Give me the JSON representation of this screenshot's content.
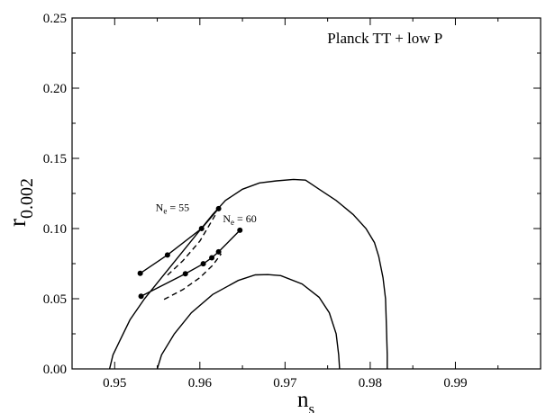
{
  "chart_data": {
    "type": "line",
    "title": "",
    "xlabel": {
      "main": "n",
      "sub": "s"
    },
    "ylabel": {
      "main": "r",
      "sub": "0.002"
    },
    "xlim": [
      0.945,
      1.0
    ],
    "ylim": [
      0.0,
      0.25
    ],
    "xticks": [
      0.95,
      0.96,
      0.97,
      0.98,
      0.99
    ],
    "xtick_labels": [
      "0.95",
      "0.96",
      "0.97",
      "0.98",
      "0.99"
    ],
    "yticks": [
      0.0,
      0.05,
      0.1,
      0.15,
      0.2,
      0.25
    ],
    "ytick_labels": [
      "0.00",
      "0.05",
      "0.10",
      "0.15",
      "0.20",
      "0.25"
    ],
    "grid": false,
    "annotations": [
      {
        "text": "Planck TT + low P",
        "x": 0.9885,
        "y": 0.232
      }
    ],
    "efold_labels": [
      {
        "main": "N",
        "sub": "e",
        "rest": " = 55",
        "x": 0.9548,
        "y": 0.1125
      },
      {
        "main": "N",
        "sub": "e",
        "rest": " = 60",
        "x": 0.9627,
        "y": 0.1045
      }
    ],
    "series": [
      {
        "style": "solid",
        "points": [
          [
            0.9494,
            0.0
          ],
          [
            0.9498,
            0.01
          ],
          [
            0.9506,
            0.02
          ],
          [
            0.9518,
            0.035
          ],
          [
            0.9535,
            0.05
          ],
          [
            0.9555,
            0.065
          ],
          [
            0.9575,
            0.08
          ],
          [
            0.9595,
            0.095
          ],
          [
            0.9615,
            0.11
          ],
          [
            0.963,
            0.12
          ],
          [
            0.965,
            0.128
          ],
          [
            0.967,
            0.1325
          ],
          [
            0.969,
            0.134
          ],
          [
            0.971,
            0.135
          ],
          [
            0.9724,
            0.1345
          ],
          [
            0.974,
            0.128
          ],
          [
            0.976,
            0.12
          ],
          [
            0.978,
            0.11
          ],
          [
            0.9795,
            0.1
          ],
          [
            0.9805,
            0.09
          ],
          [
            0.981,
            0.08
          ],
          [
            0.9815,
            0.065
          ],
          [
            0.9818,
            0.05
          ],
          [
            0.9819,
            0.03
          ],
          [
            0.982,
            0.01
          ],
          [
            0.982,
            0.0
          ]
        ]
      },
      {
        "style": "solid",
        "points": [
          [
            0.955,
            0.0
          ],
          [
            0.9555,
            0.01
          ],
          [
            0.957,
            0.025
          ],
          [
            0.959,
            0.04
          ],
          [
            0.9615,
            0.053
          ],
          [
            0.9645,
            0.063
          ],
          [
            0.9665,
            0.067
          ],
          [
            0.968,
            0.0672
          ],
          [
            0.9695,
            0.0665
          ],
          [
            0.972,
            0.0605
          ],
          [
            0.974,
            0.051
          ],
          [
            0.9752,
            0.04
          ],
          [
            0.976,
            0.025
          ],
          [
            0.9763,
            0.01
          ],
          [
            0.9764,
            0.0
          ]
        ]
      },
      {
        "style": "solid",
        "markers": true,
        "points": [
          [
            0.953,
            0.0681
          ],
          [
            0.9562,
            0.0812
          ],
          [
            0.9602,
            0.1
          ],
          [
            0.9622,
            0.1142
          ]
        ]
      },
      {
        "style": "solid",
        "markers": true,
        "points": [
          [
            0.9531,
            0.0518
          ],
          [
            0.9583,
            0.0678
          ],
          [
            0.9604,
            0.0749
          ],
          [
            0.9614,
            0.0792
          ],
          [
            0.9622,
            0.0834
          ],
          [
            0.9647,
            0.0988
          ]
        ]
      },
      {
        "style": "dashed",
        "points": [
          [
            0.9562,
            0.0668
          ],
          [
            0.958,
            0.077
          ],
          [
            0.96,
            0.091
          ],
          [
            0.9618,
            0.1095
          ]
        ]
      },
      {
        "style": "dashed",
        "points": [
          [
            0.9558,
            0.0495
          ],
          [
            0.958,
            0.0565
          ],
          [
            0.96,
            0.065
          ],
          [
            0.9615,
            0.0738
          ],
          [
            0.9625,
            0.082
          ]
        ]
      }
    ]
  }
}
